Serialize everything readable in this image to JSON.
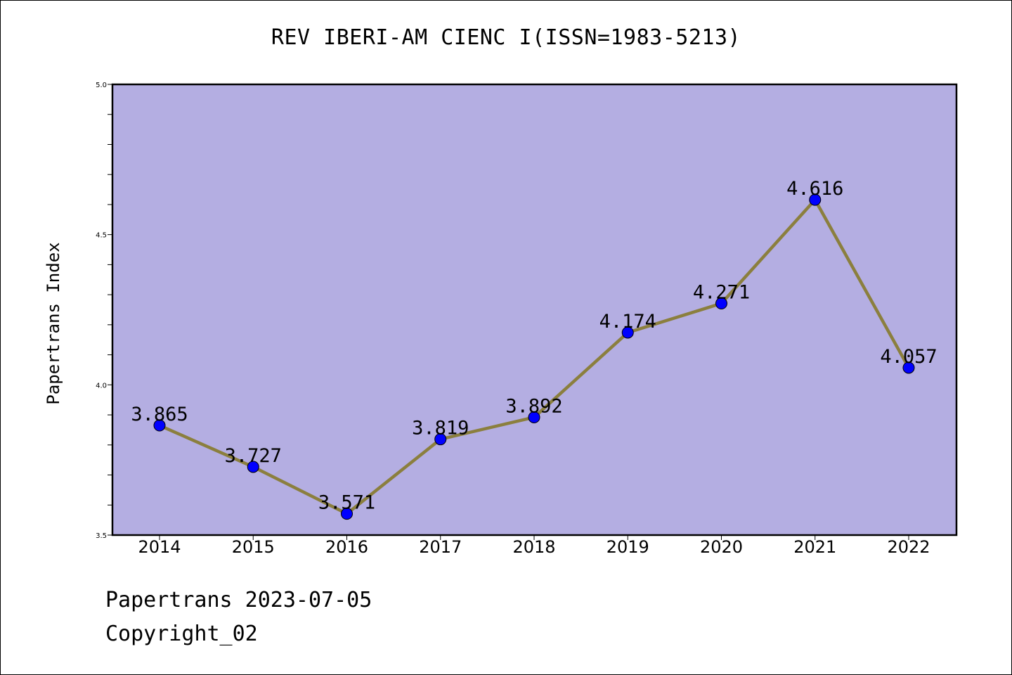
{
  "chart_data": {
    "type": "line",
    "title": "REV IBERI-AM CIENC I(ISSN=1983-5213)",
    "xlabel": "",
    "ylabel": "Papertrans Index",
    "categories": [
      "2014",
      "2015",
      "2016",
      "2017",
      "2018",
      "2019",
      "2020",
      "2021",
      "2022"
    ],
    "series": [
      {
        "values": [
          3.865,
          3.727,
          3.571,
          3.819,
          3.892,
          4.174,
          4.271,
          4.616,
          4.057
        ],
        "labels": [
          "3.865",
          "3.727",
          "3.571",
          "3.819",
          "3.892",
          "4.174",
          "4.271",
          "4.616",
          "4.057"
        ]
      }
    ],
    "ylim": [
      3.5,
      5.0
    ],
    "yticks": [
      "3.5",
      "4.0",
      "4.5",
      "5.0"
    ],
    "grid": false,
    "colors": {
      "plot_background": "#b4aee2",
      "line": "#8b7f3e",
      "marker": "#0000ff"
    }
  },
  "footer": {
    "date": "Papertrans 2023-07-05",
    "copyright": "Copyright_02"
  }
}
